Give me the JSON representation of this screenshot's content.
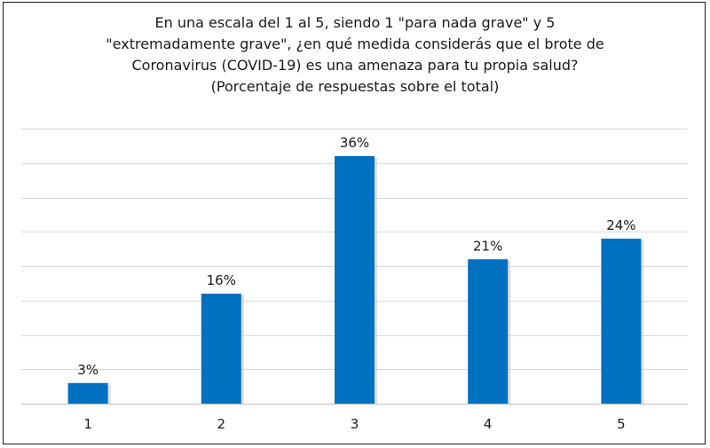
{
  "chart_data": {
    "type": "bar",
    "title_lines": [
      "En una escala del 1 al 5, siendo 1 \"para nada grave\" y 5",
      "\"extremadamente grave\", ¿en qué medida considerás que el brote de",
      "Coronavirus (COVID-19) es una amenaza para tu propia salud?",
      "(Porcentaje de respuestas sobre el total)"
    ],
    "categories": [
      "1",
      "2",
      "3",
      "4",
      "5"
    ],
    "values": [
      3,
      16,
      36,
      21,
      24
    ],
    "data_labels": [
      "3%",
      "16%",
      "36%",
      "21%",
      "24%"
    ],
    "unit": "%",
    "ylim": [
      0,
      40
    ],
    "grid": true,
    "bar_color": "#0070C0",
    "gridline_color": "#D9D9D9"
  }
}
